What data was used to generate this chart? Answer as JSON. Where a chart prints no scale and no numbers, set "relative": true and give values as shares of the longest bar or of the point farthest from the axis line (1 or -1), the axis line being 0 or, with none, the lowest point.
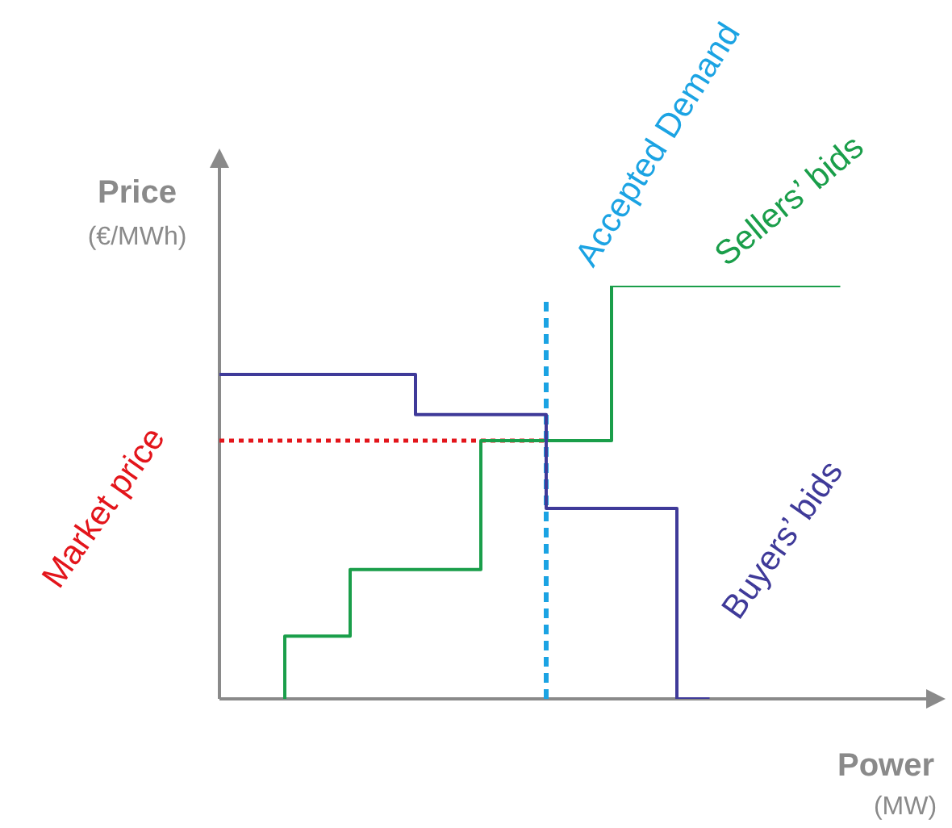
{
  "chart_data": {
    "type": "step",
    "relative": true,
    "legend": false,
    "xlabel": "Power\n(MW)",
    "ylabel": "Price\n(€/MWh)",
    "categories": [
      null,
      null,
      null,
      null,
      null,
      null,
      null,
      null,
      null,
      null,
      null,
      null,
      null,
      null,
      null,
      null,
      null,
      null,
      null,
      null,
      null,
      null,
      null
    ],
    "series": [
      {
        "name": "Buyers’ bids",
        "color": "#3f3a99",
        "values": [
          0.785,
          0.785,
          0.785,
          0.785,
          0.785,
          0.785,
          0.785,
          0.688,
          0.688,
          0.688,
          0.688,
          0.461,
          0.461,
          0.461,
          0.461,
          0,
          null,
          null,
          null,
          null,
          null,
          null,
          null
        ]
      },
      {
        "name": "Sellers’ bids",
        "color": "#1a9e4a",
        "values": [
          null,
          null,
          0,
          0.152,
          0.152,
          0.313,
          0.313,
          0.313,
          0.313,
          0.625,
          0.625,
          0.625,
          0.625,
          1,
          1,
          1,
          1,
          1,
          1,
          1,
          null,
          null,
          null
        ]
      },
      {
        "name": "Market price",
        "color": "#e3151b",
        "line_style": "dotted",
        "values": [
          0.625,
          0.625,
          0.625,
          0.625,
          0.625,
          0.625,
          0.625,
          0.625,
          0.625,
          0.625,
          0.625,
          null,
          null,
          null,
          null,
          null,
          null,
          null,
          null,
          null,
          null,
          null,
          null
        ]
      }
    ],
    "annotations": [
      "Accepted Demand"
    ]
  }
}
